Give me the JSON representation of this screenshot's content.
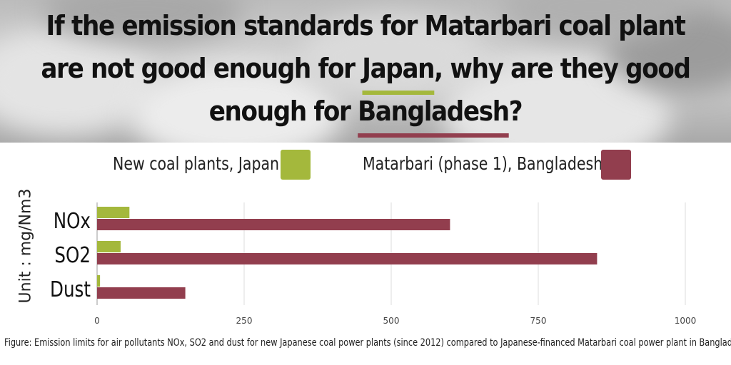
{
  "headline": {
    "part1": "If the emission standards for Matarbari coal plant are not good enough for ",
    "country1": "Japan",
    "part2": ", why are they good enough for ",
    "country2": "Bangladesh",
    "part3": "?"
  },
  "colors": {
    "japan": "#a4b83c",
    "bangladesh": "#923e4e",
    "grid": "#dddddd",
    "text": "#222222"
  },
  "chart_data": {
    "type": "bar",
    "orientation": "horizontal",
    "categories": [
      "NOx",
      "SO2",
      "Dust"
    ],
    "series": [
      {
        "name": "New coal plants, Japan",
        "values": [
          55,
          40,
          5
        ]
      },
      {
        "name": "Matarbari (phase 1), Bangladesh",
        "values": [
          600,
          850,
          150
        ]
      }
    ],
    "ylabel": "Unit : mg/Nm3",
    "xlim": [
      0,
      1000
    ],
    "xticks": [
      "0",
      "250",
      "500",
      "750",
      "1000"
    ],
    "grid": true,
    "legend": "top"
  },
  "caption": "Figure: Emission limits for air pollutants NOx, SO2 and dust for new Japanese coal power plants (since 2012) compared to Japanese-financed Matarbari coal power plant in Bangladesh"
}
